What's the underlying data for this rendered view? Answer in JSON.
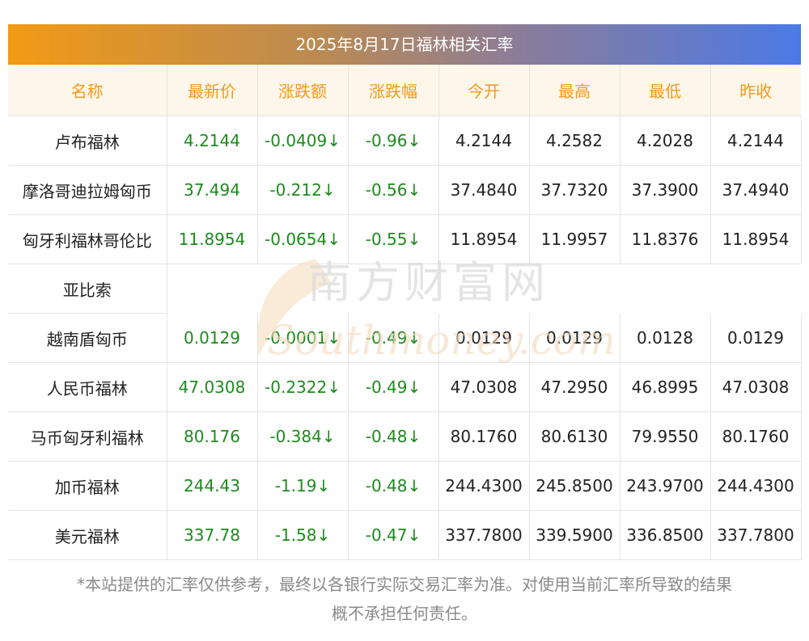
{
  "title": "2025年8月17日福林相关汇率",
  "headers": [
    "名称",
    "最新价",
    "涨跌额",
    "涨跌幅",
    "今开",
    "最高",
    "最低",
    "昨收"
  ],
  "rows": [
    {
      "name": "卢布福林",
      "latest": "4.2144",
      "change": "-0.0409↓",
      "pct": "-0.96↓",
      "open": "4.2144",
      "high": "4.2582",
      "low": "4.2028",
      "prev": "4.2144"
    },
    {
      "name": "摩洛哥迪拉姆匈币",
      "latest": "37.494",
      "change": "-0.212↓",
      "pct": "-0.56↓",
      "open": "37.4840",
      "high": "37.7320",
      "low": "37.3900",
      "prev": "37.4940"
    },
    {
      "name": "匈牙利福林哥伦比",
      "name_cont": "亚比索",
      "latest": "11.8954",
      "change": "-0.0654↓",
      "pct": "-0.55↓",
      "open": "11.8954",
      "high": "11.9957",
      "low": "11.8376",
      "prev": "11.8954"
    },
    {
      "name": "越南盾匈币",
      "latest": "0.0129",
      "change": "-0.0001↓",
      "pct": "-0.49↓",
      "open": "0.0129",
      "high": "0.0129",
      "low": "0.0128",
      "prev": "0.0129"
    },
    {
      "name": "人民币福林",
      "latest": "47.0308",
      "change": "-0.2322↓",
      "pct": "-0.49↓",
      "open": "47.0308",
      "high": "47.2950",
      "low": "46.8995",
      "prev": "47.0308"
    },
    {
      "name": "马币匈牙利福林",
      "latest": "80.176",
      "change": "-0.384↓",
      "pct": "-0.48↓",
      "open": "80.1760",
      "high": "80.6130",
      "low": "79.9550",
      "prev": "80.1760"
    },
    {
      "name": "加币福林",
      "latest": "244.43",
      "change": "-1.19↓",
      "pct": "-0.48↓",
      "open": "244.4300",
      "high": "245.8500",
      "low": "243.9700",
      "prev": "244.4300"
    },
    {
      "name": "美元福林",
      "latest": "337.78",
      "change": "-1.58↓",
      "pct": "-0.47↓",
      "open": "337.7800",
      "high": "339.5900",
      "low": "336.8500",
      "prev": "337.7800"
    }
  ],
  "watermark": {
    "cn": "南方财富网",
    "en": "Southmoney.com"
  },
  "footer": {
    "line1": "*本站提供的汇率仅供参考，最终以各银行实际交易汇率为准。对使用当前汇率所导致的结果",
    "line2": "概不承担任何责任。"
  },
  "colors": {
    "accent": "#f39a1c",
    "gain_loss": "#1e8a1e",
    "title_start": "#f29a14",
    "title_end": "#4b7ae6"
  }
}
